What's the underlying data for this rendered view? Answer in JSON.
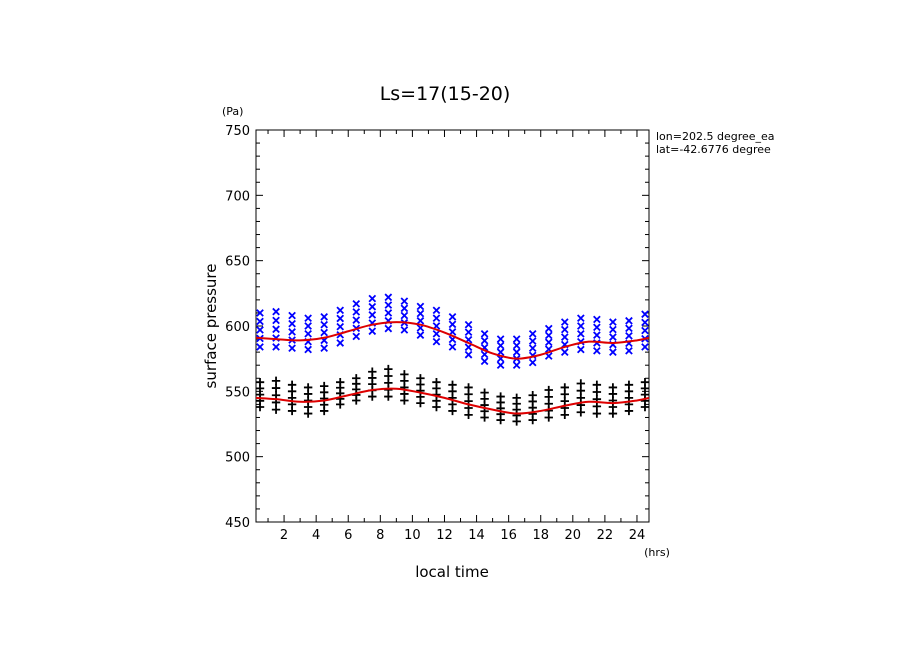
{
  "chart_data": {
    "type": "scatter",
    "title": "Ls=17(15-20)",
    "xlabel": "local time",
    "ylabel": "surface pressure",
    "x_unit": "(hrs)",
    "y_unit": "(Pa)",
    "xlim": [
      0.25,
      24.75
    ],
    "ylim": [
      450,
      750
    ],
    "x_ticks": [
      2,
      4,
      6,
      8,
      10,
      12,
      14,
      16,
      18,
      20,
      22,
      24
    ],
    "y_ticks": [
      450,
      500,
      550,
      600,
      650,
      700,
      750
    ],
    "annotation": [
      "lon=202.5 degree_ea",
      "lat=-42.6776 degree"
    ],
    "colors": {
      "blue_markers": "#0000ff",
      "black_markers": "#000000",
      "fit_curve": "#dd0000"
    },
    "series": [
      {
        "marker": "x",
        "color": "#0000ff",
        "x": [
          0.5,
          1.5,
          2.5,
          3.5,
          4.5,
          5.5,
          6.5,
          7.5,
          8.5,
          9.5,
          10.5,
          11.5,
          12.5,
          13.5,
          14.5,
          15.5,
          16.5,
          17.5,
          18.5,
          19.5,
          20.5,
          21.5,
          22.5,
          23.5,
          24.5
        ],
        "y_min": [
          584,
          584,
          583,
          582,
          583,
          587,
          592,
          596,
          598,
          597,
          593,
          588,
          584,
          578,
          573,
          570,
          570,
          572,
          577,
          580,
          582,
          581,
          580,
          581,
          584
        ],
        "y_max": [
          610,
          611,
          608,
          606,
          607,
          612,
          617,
          621,
          622,
          619,
          615,
          612,
          607,
          601,
          594,
          590,
          590,
          594,
          598,
          603,
          606,
          605,
          603,
          604,
          609
        ],
        "points_per_time": 5
      },
      {
        "marker": "+",
        "color": "#000000",
        "x": [
          0.5,
          1.5,
          2.5,
          3.5,
          4.5,
          5.5,
          6.5,
          7.5,
          8.5,
          9.5,
          10.5,
          11.5,
          12.5,
          13.5,
          14.5,
          15.5,
          16.5,
          17.5,
          18.5,
          19.5,
          20.5,
          21.5,
          22.5,
          23.5,
          24.5
        ],
        "y_min": [
          538,
          536,
          535,
          533,
          535,
          540,
          543,
          546,
          546,
          543,
          541,
          538,
          535,
          532,
          530,
          528,
          527,
          528,
          530,
          532,
          534,
          533,
          533,
          535,
          538
        ],
        "y_max": [
          557,
          558,
          555,
          553,
          554,
          557,
          560,
          565,
          567,
          563,
          560,
          557,
          555,
          553,
          549,
          546,
          545,
          547,
          551,
          553,
          556,
          555,
          553,
          555,
          557
        ],
        "points_per_time": 5
      }
    ],
    "fit_curves": [
      {
        "color": "#dd0000",
        "x": [
          0.25,
          1.5,
          3,
          4.5,
          6,
          7.5,
          9,
          10.5,
          12,
          13.5,
          15,
          16.5,
          18,
          19.5,
          21,
          22.5,
          24,
          24.75
        ],
        "y": [
          591,
          590,
          589,
          591,
          596,
          601,
          603,
          601,
          595,
          587,
          579,
          575,
          578,
          584,
          588,
          587,
          589,
          591
        ]
      },
      {
        "color": "#dd0000",
        "x": [
          0.25,
          1.5,
          3,
          4.5,
          6,
          7.5,
          9,
          10.5,
          12,
          13.5,
          15,
          16.5,
          18,
          19.5,
          21,
          22.5,
          24,
          24.75
        ],
        "y": [
          545,
          544,
          542,
          543,
          547,
          551,
          552,
          549,
          545,
          540,
          536,
          533,
          535,
          539,
          542,
          541,
          543,
          545
        ]
      }
    ]
  }
}
